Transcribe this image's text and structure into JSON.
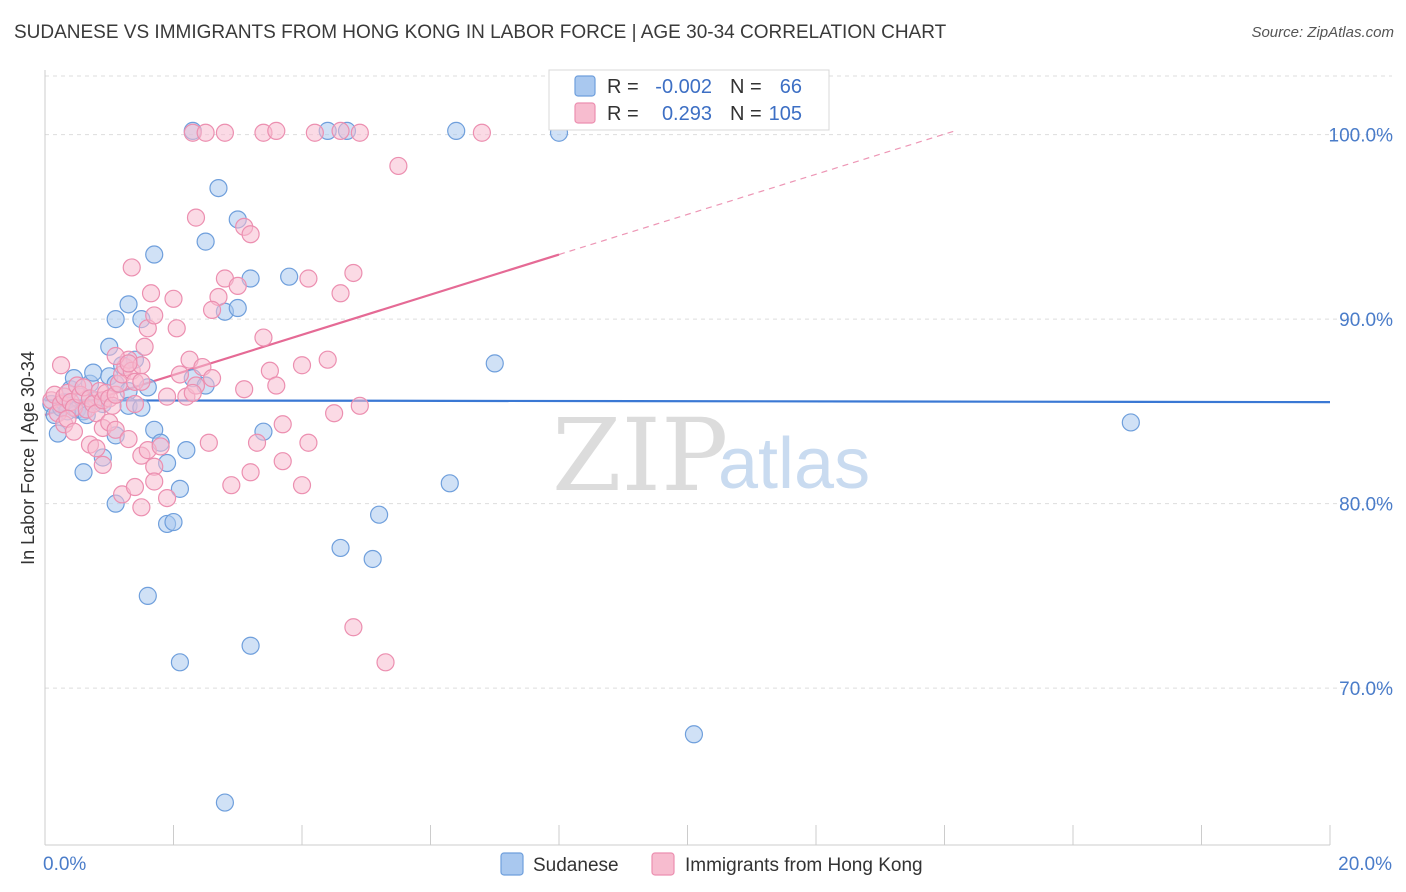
{
  "title": "SUDANESE VS IMMIGRANTS FROM HONG KONG IN LABOR FORCE | AGE 30-34 CORRELATION CHART",
  "source": "Source: ZipAtlas.com",
  "watermark": {
    "zip": "ZIP",
    "atlas": "atlas"
  },
  "colors": {
    "sudanese_fill": "#a9c8ef",
    "sudanese_stroke": "#6f9fdc",
    "sudanese_line": "#3a78d4",
    "hk_fill": "#f7bccf",
    "hk_stroke": "#ec8fb0",
    "hk_line": "#e56a95",
    "grid": "#dddddd",
    "tick_label": "#4a7cc9"
  },
  "legend": {
    "rows": [
      {
        "r_label": "R =",
        "r_value": "-0.002",
        "n_label": "N =",
        "n_value": "66"
      },
      {
        "r_label": "R =",
        "r_value": "0.293",
        "n_label": "N =",
        "n_value": "105"
      }
    ]
  },
  "chart_data": {
    "type": "scatter",
    "ylabel": "In Labor Force | Age 30-34",
    "xlim": [
      0,
      20
    ],
    "ylim": [
      61.5,
      103.5
    ],
    "x_tick_labels": [
      {
        "value": 0,
        "label": "0.0%"
      },
      {
        "value": 20,
        "label": "20.0%"
      }
    ],
    "x_minor_ticks": [
      0,
      2,
      4,
      6,
      8,
      10,
      12,
      14,
      16,
      18,
      20
    ],
    "y_ticks": [
      {
        "value": 70,
        "label": "70.0%"
      },
      {
        "value": 80,
        "label": "80.0%"
      },
      {
        "value": 90,
        "label": "90.0%"
      },
      {
        "value": 100,
        "label": "100.0%"
      }
    ],
    "grid": true,
    "legend_position": "top-center",
    "series": [
      {
        "name": "Sudanese",
        "trend": {
          "x": [
            0,
            20
          ],
          "y": [
            85.6,
            85.5
          ],
          "dashed_x": []
        },
        "points": [
          [
            0.1,
            85.4
          ],
          [
            0.15,
            84.8
          ],
          [
            0.2,
            83.8
          ],
          [
            0.25,
            85.2
          ],
          [
            0.3,
            85.5
          ],
          [
            0.35,
            85.0
          ],
          [
            0.4,
            86.2
          ],
          [
            0.45,
            86.8
          ],
          [
            0.5,
            85.1
          ],
          [
            0.55,
            85.8
          ],
          [
            0.6,
            85.0
          ],
          [
            0.65,
            84.8
          ],
          [
            0.7,
            86.5
          ],
          [
            0.75,
            87.1
          ],
          [
            0.8,
            85.6
          ],
          [
            0.9,
            85.4
          ],
          [
            1.0,
            86.9
          ],
          [
            1.1,
            86.5
          ],
          [
            1.2,
            87.5
          ],
          [
            1.3,
            86.1
          ],
          [
            1.0,
            88.5
          ],
          [
            1.1,
            90.0
          ],
          [
            1.3,
            90.8
          ],
          [
            1.5,
            90.0
          ],
          [
            1.6,
            86.3
          ],
          [
            1.4,
            87.8
          ],
          [
            1.3,
            85.3
          ],
          [
            1.5,
            85.2
          ],
          [
            0.6,
            81.7
          ],
          [
            0.9,
            82.5
          ],
          [
            1.1,
            83.7
          ],
          [
            1.7,
            84.0
          ],
          [
            1.8,
            83.3
          ],
          [
            1.9,
            82.2
          ],
          [
            2.2,
            82.9
          ],
          [
            2.1,
            80.8
          ],
          [
            1.1,
            80.0
          ],
          [
            1.9,
            78.9
          ],
          [
            2.0,
            79.0
          ],
          [
            1.6,
            75.0
          ],
          [
            2.1,
            71.4
          ],
          [
            2.5,
            94.2
          ],
          [
            2.7,
            97.1
          ],
          [
            3.0,
            95.4
          ],
          [
            2.8,
            90.4
          ],
          [
            3.0,
            90.6
          ],
          [
            2.3,
            86.8
          ],
          [
            2.5,
            86.4
          ],
          [
            1.7,
            93.5
          ],
          [
            3.2,
            92.2
          ],
          [
            3.4,
            83.9
          ],
          [
            3.8,
            92.3
          ],
          [
            3.2,
            72.3
          ],
          [
            2.8,
            63.8
          ],
          [
            2.3,
            100.2
          ],
          [
            4.4,
            100.2
          ],
          [
            4.7,
            100.2
          ],
          [
            6.4,
            100.2
          ],
          [
            8.0,
            100.1
          ],
          [
            4.6,
            77.6
          ],
          [
            5.1,
            77.0
          ],
          [
            5.2,
            79.4
          ],
          [
            6.3,
            81.1
          ],
          [
            7.0,
            87.6
          ],
          [
            10.1,
            67.5
          ],
          [
            16.9,
            84.4
          ]
        ]
      },
      {
        "name": "Immigrants from Hong Kong",
        "trend": {
          "x": [
            0,
            8
          ],
          "y": [
            84.8,
            93.5
          ],
          "dashed_x": [
            8,
            14.2
          ]
        },
        "points": [
          [
            0.1,
            85.6
          ],
          [
            0.15,
            85.9
          ],
          [
            0.2,
            84.9
          ],
          [
            0.25,
            85.4
          ],
          [
            0.3,
            85.8
          ],
          [
            0.35,
            86.0
          ],
          [
            0.4,
            85.5
          ],
          [
            0.45,
            85.2
          ],
          [
            0.5,
            86.4
          ],
          [
            0.55,
            85.9
          ],
          [
            0.6,
            86.3
          ],
          [
            0.65,
            85.1
          ],
          [
            0.7,
            85.7
          ],
          [
            0.75,
            85.4
          ],
          [
            0.8,
            84.9
          ],
          [
            0.85,
            86.1
          ],
          [
            0.9,
            85.6
          ],
          [
            0.95,
            86.0
          ],
          [
            1.0,
            85.7
          ],
          [
            1.05,
            85.3
          ],
          [
            1.1,
            85.9
          ],
          [
            1.15,
            86.5
          ],
          [
            1.2,
            87.0
          ],
          [
            1.25,
            87.4
          ],
          [
            1.3,
            87.8
          ],
          [
            1.35,
            87.2
          ],
          [
            1.4,
            86.6
          ],
          [
            1.5,
            87.5
          ],
          [
            0.3,
            84.3
          ],
          [
            0.35,
            84.6
          ],
          [
            0.45,
            83.9
          ],
          [
            0.7,
            83.2
          ],
          [
            0.8,
            83.0
          ],
          [
            0.9,
            84.1
          ],
          [
            1.0,
            84.4
          ],
          [
            1.1,
            84.0
          ],
          [
            1.3,
            83.5
          ],
          [
            1.5,
            82.6
          ],
          [
            1.6,
            82.9
          ],
          [
            1.8,
            83.1
          ],
          [
            1.7,
            82.0
          ],
          [
            1.2,
            80.5
          ],
          [
            1.4,
            80.9
          ],
          [
            1.7,
            81.2
          ],
          [
            1.9,
            80.3
          ],
          [
            1.5,
            79.8
          ],
          [
            0.9,
            82.1
          ],
          [
            0.25,
            87.5
          ],
          [
            1.1,
            88.0
          ],
          [
            1.3,
            87.6
          ],
          [
            1.55,
            88.5
          ],
          [
            1.6,
            89.5
          ],
          [
            1.7,
            90.2
          ],
          [
            1.65,
            91.4
          ],
          [
            1.35,
            92.8
          ],
          [
            2.0,
            91.1
          ],
          [
            2.05,
            89.5
          ],
          [
            2.1,
            87.0
          ],
          [
            2.2,
            85.8
          ],
          [
            2.25,
            87.8
          ],
          [
            2.35,
            86.4
          ],
          [
            2.45,
            87.4
          ],
          [
            2.6,
            86.8
          ],
          [
            2.55,
            83.3
          ],
          [
            2.7,
            91.2
          ],
          [
            2.8,
            92.2
          ],
          [
            3.0,
            91.8
          ],
          [
            3.1,
            95.0
          ],
          [
            3.2,
            94.6
          ],
          [
            2.6,
            90.5
          ],
          [
            3.4,
            89.0
          ],
          [
            3.5,
            87.2
          ],
          [
            3.6,
            86.4
          ],
          [
            3.1,
            86.2
          ],
          [
            3.3,
            83.3
          ],
          [
            3.7,
            84.3
          ],
          [
            3.7,
            82.3
          ],
          [
            3.2,
            81.7
          ],
          [
            2.9,
            81.0
          ],
          [
            4.0,
            87.5
          ],
          [
            4.1,
            92.2
          ],
          [
            4.8,
            92.5
          ],
          [
            4.6,
            91.4
          ],
          [
            4.4,
            87.8
          ],
          [
            4.5,
            84.9
          ],
          [
            4.9,
            85.3
          ],
          [
            4.1,
            83.3
          ],
          [
            4.0,
            81.0
          ],
          [
            4.8,
            73.3
          ],
          [
            5.3,
            71.4
          ],
          [
            2.3,
            100.1
          ],
          [
            2.5,
            100.1
          ],
          [
            2.8,
            100.1
          ],
          [
            3.4,
            100.1
          ],
          [
            3.6,
            100.2
          ],
          [
            4.2,
            100.1
          ],
          [
            4.6,
            100.2
          ],
          [
            4.9,
            100.1
          ],
          [
            6.8,
            100.1
          ],
          [
            5.5,
            98.3
          ],
          [
            2.35,
            95.5
          ],
          [
            1.5,
            86.6
          ],
          [
            1.9,
            85.8
          ],
          [
            2.3,
            86.0
          ],
          [
            1.4,
            85.4
          ]
        ]
      }
    ]
  },
  "bottom_legend": {
    "items": [
      {
        "label": "Sudanese"
      },
      {
        "label": "Immigrants from Hong Kong"
      }
    ]
  }
}
